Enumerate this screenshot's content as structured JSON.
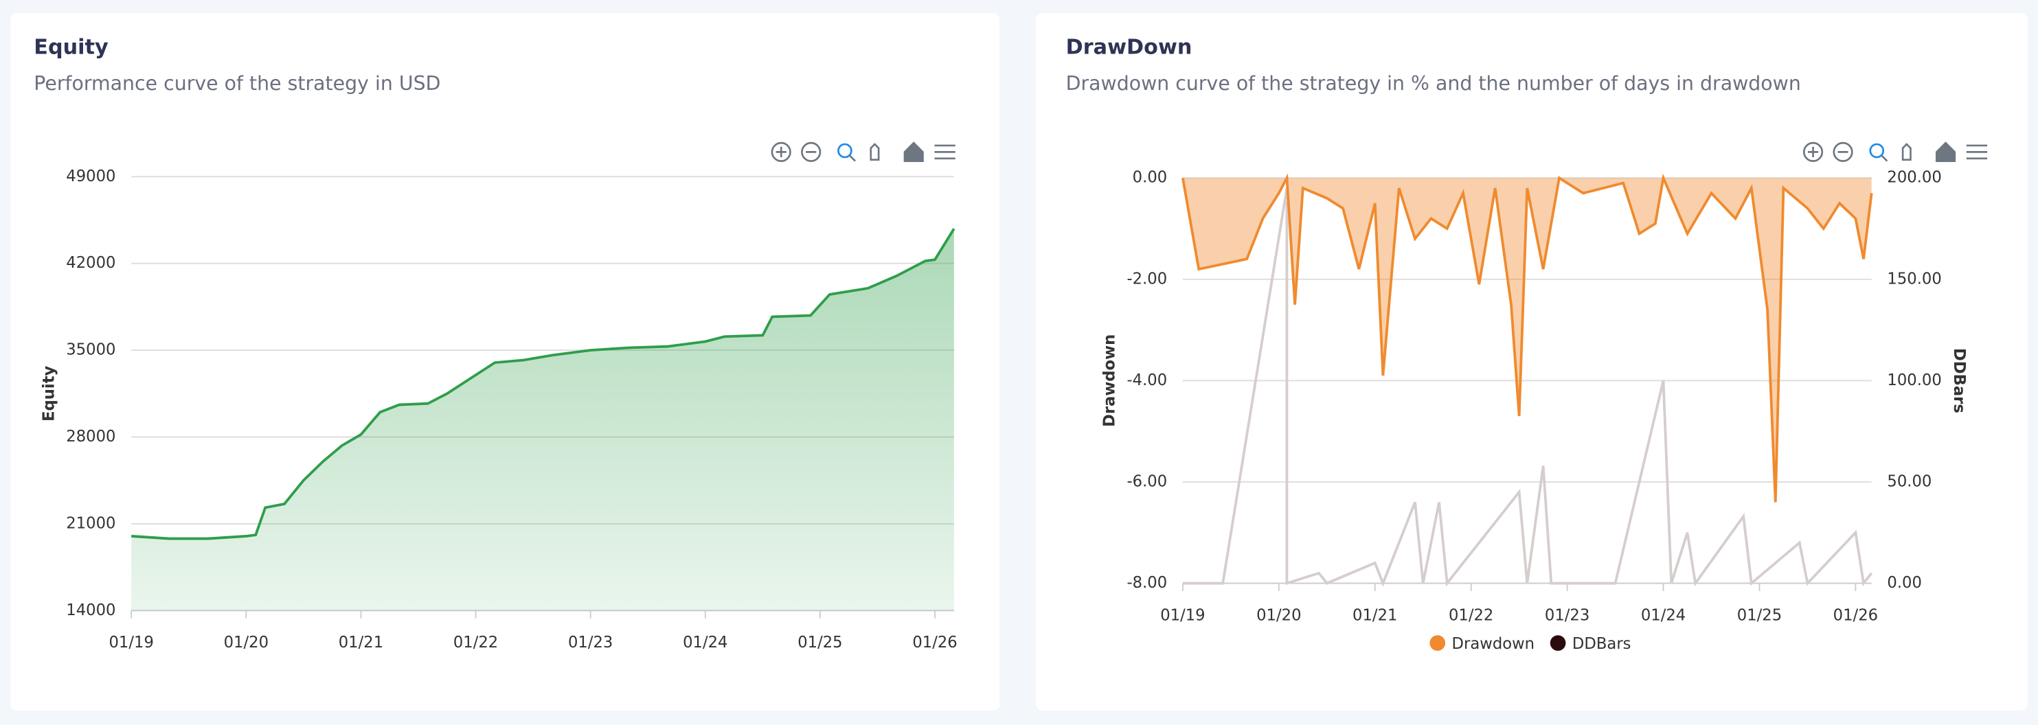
{
  "chart_data": [
    {
      "type": "area",
      "title": "Equity",
      "subtitle": "Performance curve of the strategy in USD",
      "ylabel": "Equity",
      "xlim": [
        "2019-01",
        "2026-03"
      ],
      "xticks": [
        {
          "value": "2019-01",
          "label": "01/19"
        },
        {
          "value": "2020-01",
          "label": "01/20"
        },
        {
          "value": "2021-01",
          "label": "01/21"
        },
        {
          "value": "2022-01",
          "label": "01/22"
        },
        {
          "value": "2023-01",
          "label": "01/23"
        },
        {
          "value": "2024-01",
          "label": "01/24"
        },
        {
          "value": "2025-01",
          "label": "01/25"
        },
        {
          "value": "2026-01",
          "label": "01/26"
        }
      ],
      "ylim": [
        14000,
        49000
      ],
      "yticks": [
        14000,
        21000,
        28000,
        35000,
        42000,
        49000
      ],
      "grid": true,
      "series": [
        {
          "name": "Equity",
          "color": "#2e9e4a",
          "x": [
            "2019-01",
            "2019-05",
            "2019-09",
            "2020-01",
            "2020-02",
            "2020-03",
            "2020-05",
            "2020-07",
            "2020-09",
            "2020-11",
            "2021-01",
            "2021-03",
            "2021-05",
            "2021-08",
            "2021-10",
            "2022-01",
            "2022-03",
            "2022-06",
            "2022-09",
            "2023-01",
            "2023-05",
            "2023-09",
            "2024-01",
            "2024-03",
            "2024-07",
            "2024-08",
            "2024-12",
            "2025-02",
            "2025-06",
            "2025-09",
            "2025-12",
            "2026-01",
            "2026-03"
          ],
          "values": [
            20000,
            19800,
            19800,
            20000,
            20100,
            22300,
            22600,
            24500,
            26000,
            27300,
            28200,
            30000,
            30600,
            30700,
            31500,
            33000,
            34000,
            34200,
            34600,
            35000,
            35200,
            35300,
            35700,
            36100,
            36200,
            37700,
            37800,
            39500,
            40000,
            41000,
            42200,
            42300,
            44800
          ]
        }
      ]
    },
    {
      "type": "dual",
      "title": "DrawDown",
      "subtitle": "Drawdown curve of the strategy in % and the number of days in drawdown",
      "ylabel": "Drawdown",
      "y2label": "DDBars",
      "xlim": [
        "2019-01",
        "2026-03"
      ],
      "xticks": [
        {
          "value": "2019-01",
          "label": "01/19"
        },
        {
          "value": "2020-01",
          "label": "01/20"
        },
        {
          "value": "2021-01",
          "label": "01/21"
        },
        {
          "value": "2022-01",
          "label": "01/22"
        },
        {
          "value": "2023-01",
          "label": "01/23"
        },
        {
          "value": "2024-01",
          "label": "01/24"
        },
        {
          "value": "2025-01",
          "label": "01/25"
        },
        {
          "value": "2026-01",
          "label": "01/26"
        }
      ],
      "ylim": [
        -8,
        0
      ],
      "yticks": [
        {
          "value": -8,
          "label": "-8.00"
        },
        {
          "value": -6,
          "label": "-6.00"
        },
        {
          "value": -4,
          "label": "-4.00"
        },
        {
          "value": -2,
          "label": "-2.00"
        },
        {
          "value": 0,
          "label": "0.00"
        }
      ],
      "y2lim": [
        0,
        200
      ],
      "y2ticks": [
        {
          "value": 0,
          "label": "0.00"
        },
        {
          "value": 50,
          "label": "50.00"
        },
        {
          "value": 100,
          "label": "100.00"
        },
        {
          "value": 150,
          "label": "150.00"
        },
        {
          "value": 200,
          "label": "200.00"
        }
      ],
      "grid": true,
      "series": [
        {
          "name": "Drawdown",
          "color": "#f08a2e",
          "x": [
            "2019-01",
            "2019-03",
            "2019-06",
            "2019-09",
            "2019-11",
            "2020-01",
            "2020-02",
            "2020-03",
            "2020-04",
            "2020-07",
            "2020-09",
            "2020-11",
            "2021-01",
            "2021-02",
            "2021-04",
            "2021-06",
            "2021-08",
            "2021-10",
            "2021-12",
            "2022-02",
            "2022-04",
            "2022-06",
            "2022-07",
            "2022-08",
            "2022-10",
            "2022-12",
            "2023-03",
            "2023-08",
            "2023-10",
            "2023-12",
            "2024-01",
            "2024-04",
            "2024-07",
            "2024-10",
            "2024-12",
            "2025-02",
            "2025-03",
            "2025-04",
            "2025-07",
            "2025-09",
            "2025-11",
            "2026-01",
            "2026-02",
            "2026-03"
          ],
          "values": [
            0,
            -1.8,
            -1.7,
            -1.6,
            -0.8,
            -0.3,
            0,
            -2.5,
            -0.2,
            -0.4,
            -0.6,
            -1.8,
            -0.5,
            -3.9,
            -0.2,
            -1.2,
            -0.8,
            -1.0,
            -0.3,
            -2.1,
            -0.2,
            -2.5,
            -4.7,
            -0.2,
            -1.8,
            0,
            -0.3,
            -0.1,
            -1.1,
            -0.9,
            0,
            -1.1,
            -0.3,
            -0.8,
            -0.2,
            -2.6,
            -6.4,
            -0.2,
            -0.6,
            -1.0,
            -0.5,
            -0.8,
            -1.6,
            -0.3
          ]
        },
        {
          "name": "DDBars",
          "color": "#2b0b0b",
          "line_color": "#d6cdcd",
          "axis": "y2",
          "x": [
            "2019-01",
            "2019-06",
            "2020-02",
            "2020-02",
            "2020-06",
            "2020-07",
            "2021-01",
            "2021-02",
            "2021-06",
            "2021-07",
            "2021-09",
            "2021-10",
            "2022-07",
            "2022-08",
            "2022-10",
            "2022-11",
            "2023-07",
            "2024-01",
            "2024-02",
            "2024-04",
            "2024-05",
            "2024-11",
            "2024-12",
            "2025-06",
            "2025-07",
            "2026-01",
            "2026-02",
            "2026-03"
          ],
          "values": [
            0,
            0,
            195,
            0,
            5,
            0,
            10,
            0,
            40,
            0,
            40,
            0,
            45,
            0,
            58,
            0,
            0,
            100,
            0,
            25,
            0,
            33,
            0,
            20,
            0,
            25,
            0,
            5
          ]
        }
      ]
    }
  ]
}
